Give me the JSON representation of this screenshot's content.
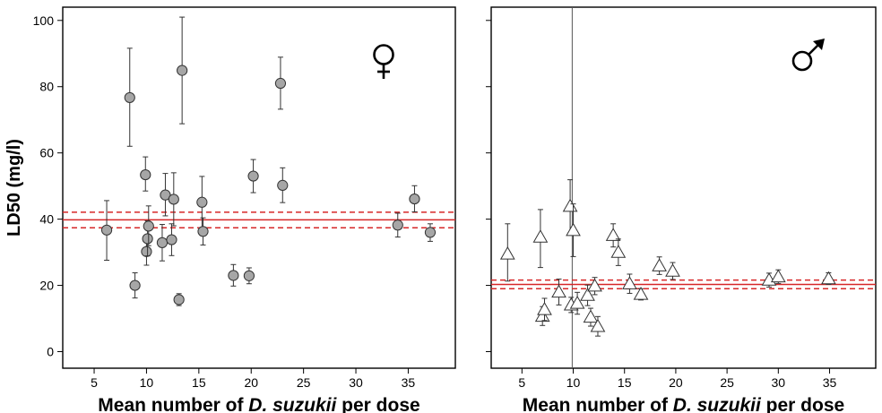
{
  "chart_data": [
    {
      "type": "scatter",
      "panel": "female",
      "symbol": "♀",
      "ylabel": "LD50 (mg/l)",
      "xlabel_parts": [
        "Mean number of ",
        "D. suzukii",
        " per dose"
      ],
      "xlim": [
        2,
        39.5
      ],
      "ylim": [
        -5,
        104
      ],
      "xticks": [
        5,
        10,
        15,
        20,
        25,
        30,
        35
      ],
      "yticks": [
        0,
        20,
        40,
        60,
        80,
        100
      ],
      "grid": false,
      "marker": "circle",
      "marker_color": "#a6a6a6",
      "reference": {
        "mean": 39.8,
        "lower": 37.4,
        "upper": 42.1,
        "color": "#d62728"
      },
      "points": [
        {
          "x": 6.2,
          "y": 36.7,
          "lo": 27.6,
          "hi": 45.6
        },
        {
          "x": 8.4,
          "y": 76.7,
          "lo": 62.0,
          "hi": 91.6
        },
        {
          "x": 8.9,
          "y": 20.0,
          "lo": 16.2,
          "hi": 23.8
        },
        {
          "x": 9.9,
          "y": 53.4,
          "lo": 48.5,
          "hi": 58.8
        },
        {
          "x": 10.0,
          "y": 30.2,
          "lo": 26.1,
          "hi": 34.3
        },
        {
          "x": 10.1,
          "y": 34.1,
          "lo": 28.9,
          "hi": 39.5
        },
        {
          "x": 10.2,
          "y": 37.9,
          "lo": 32.0,
          "hi": 44.0
        },
        {
          "x": 11.5,
          "y": 32.9,
          "lo": 27.4,
          "hi": 38.4
        },
        {
          "x": 11.8,
          "y": 47.3,
          "lo": 41.0,
          "hi": 53.8
        },
        {
          "x": 12.4,
          "y": 33.8,
          "lo": 29.0,
          "hi": 38.6
        },
        {
          "x": 12.6,
          "y": 46.0,
          "lo": 38.0,
          "hi": 54.0
        },
        {
          "x": 13.1,
          "y": 15.7,
          "lo": 13.9,
          "hi": 17.5
        },
        {
          "x": 13.4,
          "y": 84.9,
          "lo": 68.8,
          "hi": 101.0
        },
        {
          "x": 15.3,
          "y": 45.1,
          "lo": 37.4,
          "hi": 52.9
        },
        {
          "x": 15.4,
          "y": 36.3,
          "lo": 32.2,
          "hi": 40.4
        },
        {
          "x": 18.3,
          "y": 23.0,
          "lo": 19.8,
          "hi": 26.3
        },
        {
          "x": 19.8,
          "y": 22.9,
          "lo": 20.5,
          "hi": 25.3
        },
        {
          "x": 20.2,
          "y": 53.0,
          "lo": 48.0,
          "hi": 58.0
        },
        {
          "x": 22.8,
          "y": 81.0,
          "lo": 73.2,
          "hi": 88.9
        },
        {
          "x": 23.0,
          "y": 50.2,
          "lo": 45.0,
          "hi": 55.5
        },
        {
          "x": 34.0,
          "y": 38.2,
          "lo": 34.6,
          "hi": 41.8
        },
        {
          "x": 35.6,
          "y": 46.1,
          "lo": 42.2,
          "hi": 50.1
        },
        {
          "x": 37.1,
          "y": 36.0,
          "lo": 33.3,
          "hi": 38.6
        }
      ]
    },
    {
      "type": "scatter",
      "panel": "male",
      "symbol": "♂",
      "xlabel_parts": [
        "Mean number of ",
        "D. suzukii",
        " per dose"
      ],
      "xlim": [
        2,
        39.5
      ],
      "ylim": [
        -5,
        104
      ],
      "xticks": [
        5,
        10,
        15,
        20,
        25,
        30,
        35
      ],
      "yticks": [
        0,
        20,
        40,
        60,
        80,
        100
      ],
      "grid": false,
      "marker": "triangle",
      "marker_color": "#ffffff",
      "vline_x": 9.9,
      "reference": {
        "mean": 20.3,
        "lower": 19.0,
        "upper": 21.6,
        "color": "#d62728"
      },
      "points": [
        {
          "x": 3.6,
          "y": 29.5,
          "lo": 21.3,
          "hi": 38.6
        },
        {
          "x": 6.8,
          "y": 34.6,
          "lo": 25.4,
          "hi": 42.9
        },
        {
          "x": 7.0,
          "y": 10.7,
          "lo": 7.9,
          "hi": 13.6
        },
        {
          "x": 7.2,
          "y": 12.7,
          "lo": 9.4,
          "hi": 16.1
        },
        {
          "x": 8.6,
          "y": 18.0,
          "lo": 14.1,
          "hi": 21.9
        },
        {
          "x": 9.7,
          "y": 43.9,
          "lo": 35.8,
          "hi": 51.9
        },
        {
          "x": 9.8,
          "y": 14.1,
          "lo": 11.8,
          "hi": 16.4
        },
        {
          "x": 10.0,
          "y": 36.6,
          "lo": 28.7,
          "hi": 44.6
        },
        {
          "x": 10.4,
          "y": 14.6,
          "lo": 11.3,
          "hi": 17.9
        },
        {
          "x": 11.4,
          "y": 17.0,
          "lo": 13.9,
          "hi": 20.1
        },
        {
          "x": 11.7,
          "y": 10.4,
          "lo": 7.7,
          "hi": 13.1
        },
        {
          "x": 12.1,
          "y": 19.8,
          "lo": 17.2,
          "hi": 22.4
        },
        {
          "x": 12.4,
          "y": 7.6,
          "lo": 4.7,
          "hi": 10.6
        },
        {
          "x": 13.9,
          "y": 35.1,
          "lo": 31.6,
          "hi": 38.6
        },
        {
          "x": 14.4,
          "y": 30.0,
          "lo": 26.0,
          "hi": 34.0
        },
        {
          "x": 15.5,
          "y": 20.5,
          "lo": 17.6,
          "hi": 23.4
        },
        {
          "x": 16.6,
          "y": 17.3,
          "lo": 15.6,
          "hi": 19.0
        },
        {
          "x": 18.4,
          "y": 25.9,
          "lo": 23.3,
          "hi": 28.6
        },
        {
          "x": 19.7,
          "y": 24.3,
          "lo": 21.8,
          "hi": 26.9
        },
        {
          "x": 29.1,
          "y": 21.6,
          "lo": 19.5,
          "hi": 23.7
        },
        {
          "x": 30.0,
          "y": 22.6,
          "lo": 20.6,
          "hi": 24.7
        },
        {
          "x": 34.9,
          "y": 22.0,
          "lo": 20.3,
          "hi": 23.8
        }
      ]
    }
  ]
}
